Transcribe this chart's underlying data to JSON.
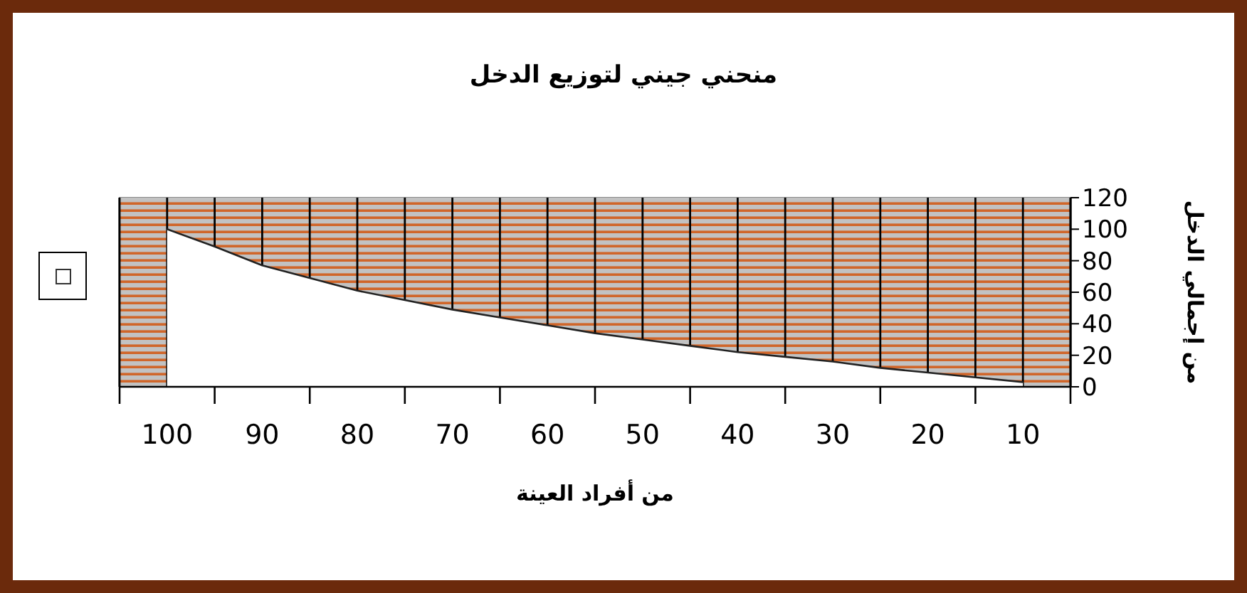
{
  "chart_data": {
    "type": "area",
    "title": "منحني جيني لتوزيع الدخل",
    "xlabel": "من أفراد العينة",
    "ylabel": "من إجمالي الدخل",
    "x": [
      100,
      95,
      90,
      85,
      80,
      75,
      70,
      65,
      60,
      55,
      50,
      45,
      40,
      35,
      30,
      25,
      20,
      15,
      10
    ],
    "series": [
      {
        "color": "#ffffff",
        "values": [
          100,
          89,
          77,
          69,
          61,
          55,
          49,
          44,
          39,
          34,
          30,
          26,
          22,
          19,
          16,
          12,
          9,
          6,
          3
        ]
      }
    ],
    "xlim": [
      105,
      5
    ],
    "xticks": [
      {
        "value": 105,
        "label": null
      },
      100,
      {
        "value": 95,
        "label": null
      },
      90,
      {
        "value": 85,
        "label": null
      },
      80,
      {
        "value": 75,
        "label": null
      },
      70,
      {
        "value": 65,
        "label": null
      },
      60,
      {
        "value": 55,
        "label": null
      },
      50,
      {
        "value": 45,
        "label": null
      },
      40,
      {
        "value": 35,
        "label": null
      },
      30,
      {
        "value": 25,
        "label": null
      },
      20,
      {
        "value": 15,
        "label": null
      },
      10,
      {
        "value": 5,
        "label": null
      }
    ],
    "ylim": [
      0,
      120
    ],
    "yticks": [
      0,
      20,
      40,
      60,
      80,
      100,
      120
    ],
    "bands": [
      {
        "axis": "x",
        "from": 105,
        "to": 5,
        "color": "#d0662a"
      }
    ],
    "grid": "x"
  }
}
